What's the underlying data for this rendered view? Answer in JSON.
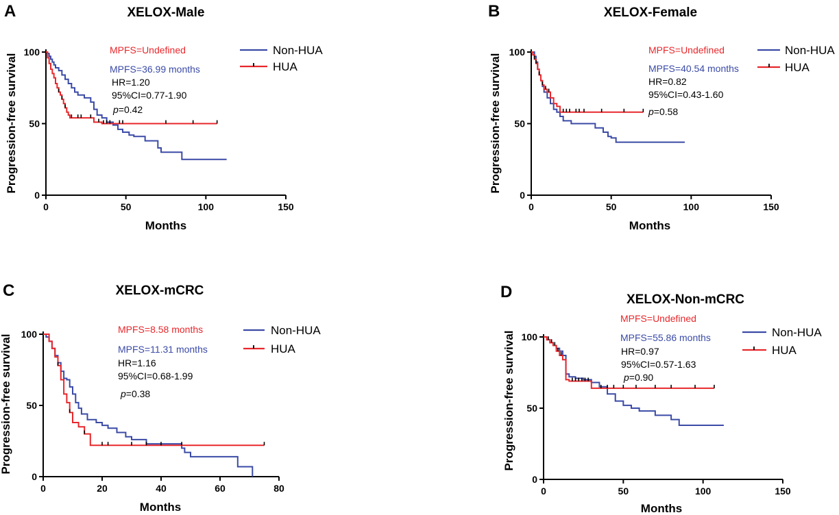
{
  "colors": {
    "non_hua": "#3a4aa6",
    "hua": "#e8272b",
    "censor": "#000000"
  },
  "chart_data": [
    {
      "panel": "A",
      "type": "line",
      "title": "XELOX-Male",
      "xlabel": "Months",
      "ylabel": "Progression-free survival",
      "xlim": [
        0,
        150
      ],
      "ylim": [
        0,
        100
      ],
      "xticks": [
        0,
        50,
        100,
        150
      ],
      "yticks": [
        0,
        50,
        100
      ],
      "legend": [
        "Non-HUA",
        "HUA"
      ],
      "legend_position": "top-right",
      "annotations": {
        "mpfs_hua": "MPFS=Undefined",
        "mpfs_non_hua": "MPFS=36.99 months",
        "hr": "HR=1.20",
        "ci": "95%CI=0.77-1.90",
        "p_prefix": "p",
        "p_value": "=0.42"
      },
      "series": [
        {
          "name": "Non-HUA",
          "x": [
            0,
            1,
            2,
            3,
            4,
            5,
            6,
            8,
            10,
            12,
            14,
            16,
            18,
            20,
            24,
            28,
            30,
            32,
            35,
            38,
            42,
            45,
            48,
            52,
            55,
            62,
            70,
            72,
            80,
            85,
            90,
            113
          ],
          "y": [
            100,
            99,
            97,
            95,
            93,
            91,
            89,
            87,
            84,
            81,
            78,
            75,
            72,
            70,
            68,
            65,
            60,
            56,
            54,
            51,
            49,
            46,
            44,
            42,
            41,
            38,
            33,
            30,
            30,
            25,
            25,
            25
          ]
        },
        {
          "name": "HUA",
          "x": [
            0,
            1,
            2,
            3,
            4,
            5,
            6,
            7,
            8,
            9,
            10,
            11,
            12,
            13,
            14,
            15,
            20,
            30,
            35,
            107
          ],
          "y": [
            100,
            96,
            92,
            88,
            85,
            82,
            78,
            75,
            72,
            70,
            67,
            64,
            61,
            58,
            56,
            54,
            54,
            51,
            50,
            50
          ],
          "censor_x": [
            8,
            10,
            12,
            16,
            20,
            22,
            28,
            33,
            36,
            38,
            40,
            46,
            48,
            75,
            92,
            107
          ]
        }
      ]
    },
    {
      "panel": "B",
      "type": "line",
      "title": "XELOX-Female",
      "xlabel": "Months",
      "ylabel": "Progression-free survival",
      "xlim": [
        0,
        150
      ],
      "ylim": [
        0,
        100
      ],
      "xticks": [
        0,
        50,
        100,
        150
      ],
      "yticks": [
        0,
        50,
        100
      ],
      "legend": [
        "Non-HUA",
        "HUA"
      ],
      "legend_position": "top-right",
      "annotations": {
        "mpfs_hua": "MPFS=Undefined",
        "mpfs_non_hua": "MPFS=40.54 months",
        "hr": "HR=0.82",
        "ci": "95%CI=0.43-1.60",
        "p_prefix": "p",
        "p_value": "=0.58"
      },
      "series": [
        {
          "name": "Non-HUA",
          "x": [
            0,
            2,
            3,
            4,
            5,
            6,
            7,
            8,
            10,
            12,
            14,
            16,
            18,
            20,
            25,
            30,
            40,
            45,
            48,
            50,
            53,
            96
          ],
          "y": [
            100,
            97,
            93,
            88,
            84,
            80,
            76,
            72,
            68,
            64,
            60,
            58,
            55,
            52,
            50,
            50,
            47,
            44,
            41,
            40,
            37,
            37
          ]
        },
        {
          "name": "HUA",
          "x": [
            0,
            1,
            2,
            3,
            4,
            5,
            6,
            7,
            8,
            10,
            12,
            14,
            16,
            18,
            70
          ],
          "y": [
            100,
            98,
            95,
            92,
            88,
            84,
            80,
            77,
            74,
            72,
            68,
            64,
            62,
            58,
            58
          ],
          "censor_x": [
            2,
            3,
            5,
            7,
            9,
            11,
            20,
            22,
            24,
            28,
            30,
            33,
            44,
            58,
            70
          ]
        }
      ]
    },
    {
      "panel": "C",
      "type": "line",
      "title": "XELOX-mCRC",
      "xlabel": "Months",
      "ylabel": "Progression-free survival",
      "xlim": [
        0,
        80
      ],
      "ylim": [
        0,
        100
      ],
      "xticks": [
        0,
        20,
        40,
        60,
        80
      ],
      "yticks": [
        0,
        50,
        100
      ],
      "legend": [
        "Non-HUA",
        "HUA"
      ],
      "legend_position": "top-right",
      "annotations": {
        "mpfs_hua": "MPFS=8.58 months",
        "mpfs_non_hua": "MPFS=11.31 months",
        "hr": "HR=1.16",
        "ci": "95%CI=0.68-1.99",
        "p_prefix": "p",
        "p_value": "=0.38"
      },
      "series": [
        {
          "name": "Non-HUA",
          "x": [
            0,
            1,
            2,
            3,
            4,
            5,
            6,
            7,
            8,
            9,
            10,
            11,
            12,
            13,
            15,
            18,
            20,
            22,
            25,
            28,
            30,
            35,
            47,
            48,
            50,
            60,
            66,
            70,
            71
          ],
          "y": [
            100,
            98,
            95,
            90,
            85,
            80,
            74,
            69,
            68,
            63,
            58,
            52,
            48,
            44,
            40,
            38,
            36,
            34,
            31,
            28,
            26,
            23,
            20,
            17,
            14,
            14,
            7,
            7,
            0
          ]
        },
        {
          "name": "HUA",
          "x": [
            0,
            2,
            3,
            4,
            5,
            6,
            7,
            8,
            9,
            10,
            12,
            14,
            16,
            75
          ],
          "y": [
            100,
            95,
            90,
            84,
            78,
            68,
            58,
            52,
            45,
            38,
            35,
            30,
            22,
            22
          ],
          "censor_x": [
            5,
            9,
            14,
            20,
            22,
            30,
            35,
            40,
            47,
            75
          ]
        }
      ]
    },
    {
      "panel": "D",
      "type": "line",
      "title": "XELOX-Non-mCRC",
      "xlabel": "Months",
      "ylabel": "Progression-free survival",
      "xlim": [
        0,
        150
      ],
      "ylim": [
        0,
        100
      ],
      "xticks": [
        0,
        50,
        100,
        150
      ],
      "yticks": [
        0,
        50,
        100
      ],
      "legend": [
        "Non-HUA",
        "HUA"
      ],
      "legend_position": "top-right",
      "annotations": {
        "mpfs_hua": "MPFS=Undefined",
        "mpfs_non_hua": "MPFS=55.86 months",
        "hr": "HR=0.97",
        "ci": "95%CI=0.57-1.63",
        "p_prefix": "p",
        "p_value": "=0.90"
      },
      "series": [
        {
          "name": "Non-HUA",
          "x": [
            0,
            2,
            4,
            6,
            8,
            10,
            12,
            14,
            16,
            20,
            25,
            30,
            35,
            40,
            45,
            50,
            55,
            60,
            70,
            80,
            85,
            113
          ],
          "y": [
            100,
            98,
            96,
            94,
            92,
            90,
            87,
            74,
            72,
            71,
            70,
            68,
            65,
            60,
            55,
            52,
            50,
            48,
            45,
            42,
            38,
            38
          ]
        },
        {
          "name": "HUA",
          "x": [
            0,
            2,
            4,
            6,
            8,
            10,
            12,
            14,
            16,
            30,
            107
          ],
          "y": [
            100,
            98,
            96,
            94,
            90,
            87,
            84,
            70,
            69,
            64,
            64
          ],
          "censor_x": [
            3,
            5,
            7,
            9,
            11,
            18,
            20,
            22,
            24,
            26,
            28,
            36,
            40,
            44,
            50,
            58,
            70,
            80,
            95,
            107
          ]
        }
      ]
    }
  ]
}
